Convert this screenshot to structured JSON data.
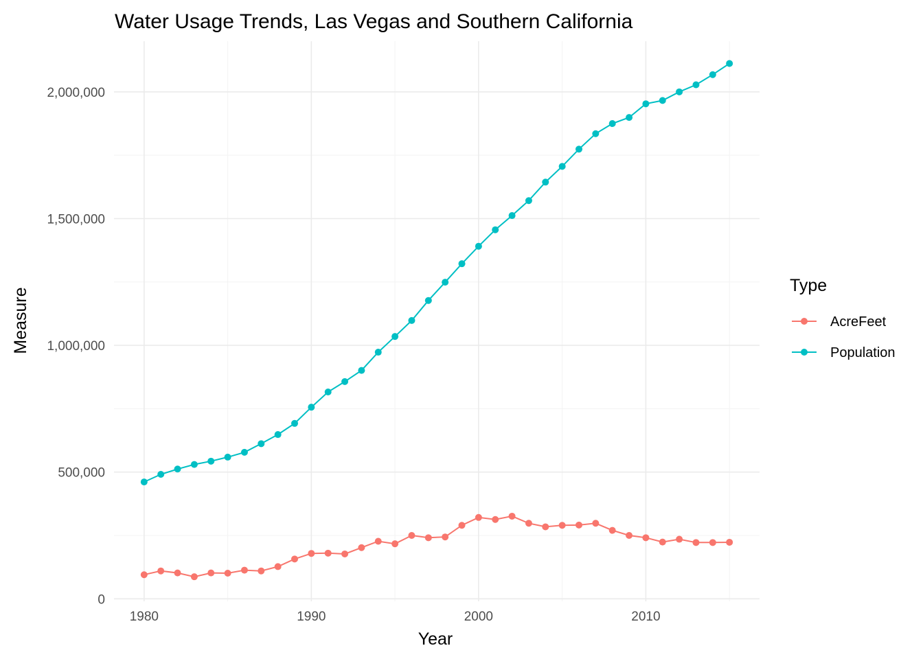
{
  "chart_data": {
    "type": "line",
    "title": "Water Usage Trends, Las Vegas and Southern California",
    "xlabel": "Year",
    "ylabel": "Measure",
    "xlim": [
      1978.2,
      2016.8
    ],
    "ylim": [
      -10000,
      2200000
    ],
    "x_ticks": [
      1980,
      1990,
      2000,
      2010
    ],
    "x_tick_labels": [
      "1980",
      "1990",
      "2000",
      "2010"
    ],
    "y_ticks": [
      0,
      500000,
      1000000,
      1500000,
      2000000
    ],
    "y_tick_labels": [
      "0",
      "500,000",
      "1,000,000",
      "1,500,000",
      "2,000,000"
    ],
    "grid": true,
    "legend_position": "right",
    "legend_title": "Type",
    "x": [
      1980,
      1981,
      1982,
      1983,
      1984,
      1985,
      1986,
      1987,
      1988,
      1989,
      1990,
      1991,
      1992,
      1993,
      1994,
      1995,
      1996,
      1997,
      1998,
      1999,
      2000,
      2001,
      2002,
      2003,
      2004,
      2005,
      2006,
      2007,
      2008,
      2009,
      2010,
      2011,
      2012,
      2013,
      2014,
      2015
    ],
    "series": [
      {
        "name": "AcreFeet",
        "color": "#f8766d",
        "values": [
          95000,
          110000,
          102000,
          87000,
          102000,
          101000,
          113000,
          110000,
          127000,
          157000,
          179000,
          180000,
          177000,
          202000,
          227000,
          217000,
          250000,
          241000,
          244000,
          290000,
          321000,
          313000,
          326000,
          298000,
          284000,
          290000,
          291000,
          298000,
          270000,
          250000,
          241000,
          224000,
          235000,
          222000,
          222000,
          223000
        ]
      },
      {
        "name": "Population",
        "color": "#00bfc4",
        "values": [
          461000,
          491000,
          512000,
          530000,
          543000,
          559000,
          578000,
          612000,
          648000,
          692000,
          756000,
          816000,
          857000,
          901000,
          973000,
          1035000,
          1098000,
          1177000,
          1249000,
          1322000,
          1391000,
          1456000,
          1512000,
          1571000,
          1644000,
          1706000,
          1774000,
          1835000,
          1875000,
          1899000,
          1953000,
          1966000,
          2000000,
          2028000,
          2068000,
          2112000
        ]
      }
    ]
  }
}
